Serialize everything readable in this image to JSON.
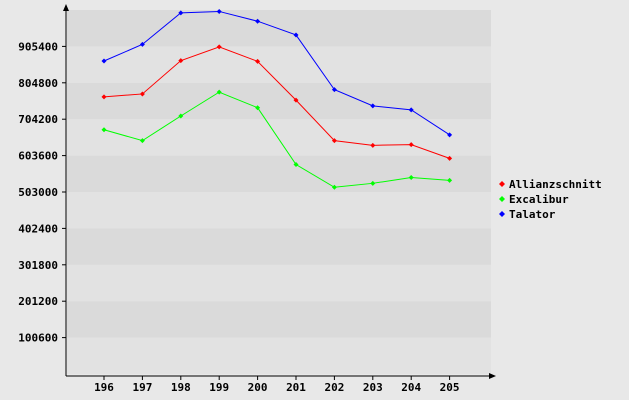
{
  "chart_data": {
    "type": "line",
    "title": "",
    "xlabel": "",
    "ylabel": "",
    "categories": [
      "196",
      "197",
      "198",
      "199",
      "200",
      "201",
      "202",
      "203",
      "204",
      "205"
    ],
    "y_ticks": [
      "100600",
      "201200",
      "301800",
      "402400",
      "503000",
      "603600",
      "704200",
      "804800",
      "905400"
    ],
    "ylim": [
      0,
      1006000
    ],
    "grid": "horizontal-bands",
    "legend_position": "right",
    "series": [
      {
        "name": "Allianzschnitt",
        "color": "#ff0000",
        "values": [
          766000,
          774000,
          866000,
          904000,
          864000,
          757000,
          645000,
          632000,
          634000,
          596000
        ]
      },
      {
        "name": "Excalibur",
        "color": "#00ff00",
        "values": [
          675000,
          645000,
          713000,
          779000,
          736000,
          579000,
          516000,
          527000,
          543000,
          535000
        ]
      },
      {
        "name": "Talator",
        "color": "#0000ff",
        "values": [
          865000,
          911000,
          998000,
          1002000,
          975000,
          937000,
          786000,
          741000,
          730000,
          661000
        ]
      }
    ]
  }
}
